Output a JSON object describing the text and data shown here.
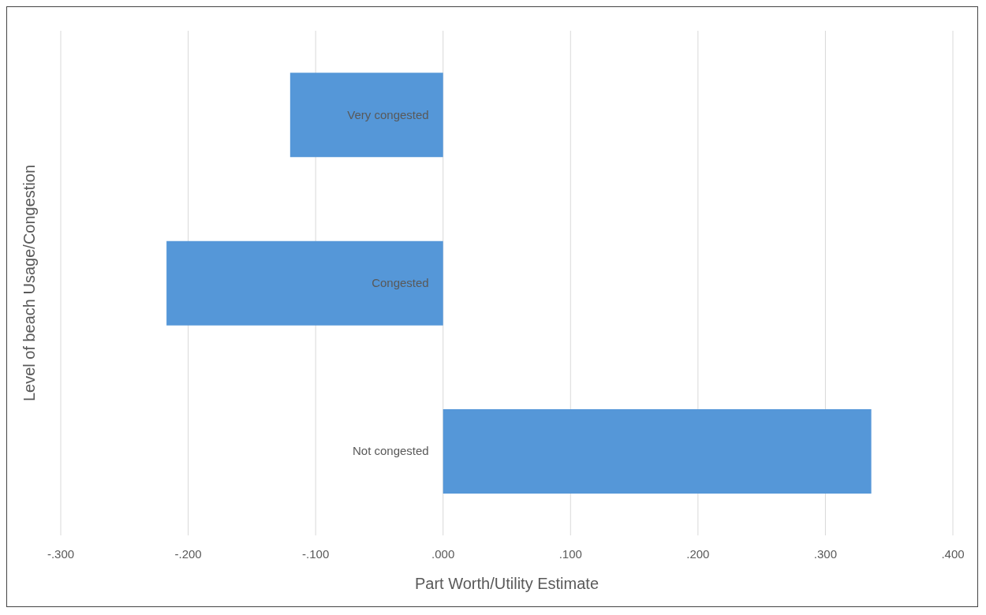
{
  "chart_data": {
    "type": "bar",
    "orientation": "horizontal",
    "xlabel": "Part Worth/Utility Estimate",
    "ylabel": "Level of beach Usage/Congestion",
    "categories": [
      "Very congested",
      "Congested",
      "Not congested"
    ],
    "values": [
      -0.12,
      -0.217,
      0.336
    ],
    "color": "#5597d8",
    "xlim": [
      -0.3,
      0.4
    ],
    "xticks": [
      {
        "value": -0.3,
        "label": "-.300"
      },
      {
        "value": -0.2,
        "label": "-.200"
      },
      {
        "value": -0.1,
        "label": "-.100"
      },
      {
        "value": 0,
        "label": ".000"
      },
      {
        "value": 0.1,
        "label": ".100"
      },
      {
        "value": 0.2,
        "label": ".200"
      },
      {
        "value": 0.3,
        "label": ".300"
      },
      {
        "value": 0.4,
        "label": ".400"
      }
    ],
    "grid": "x",
    "legend": false
  }
}
